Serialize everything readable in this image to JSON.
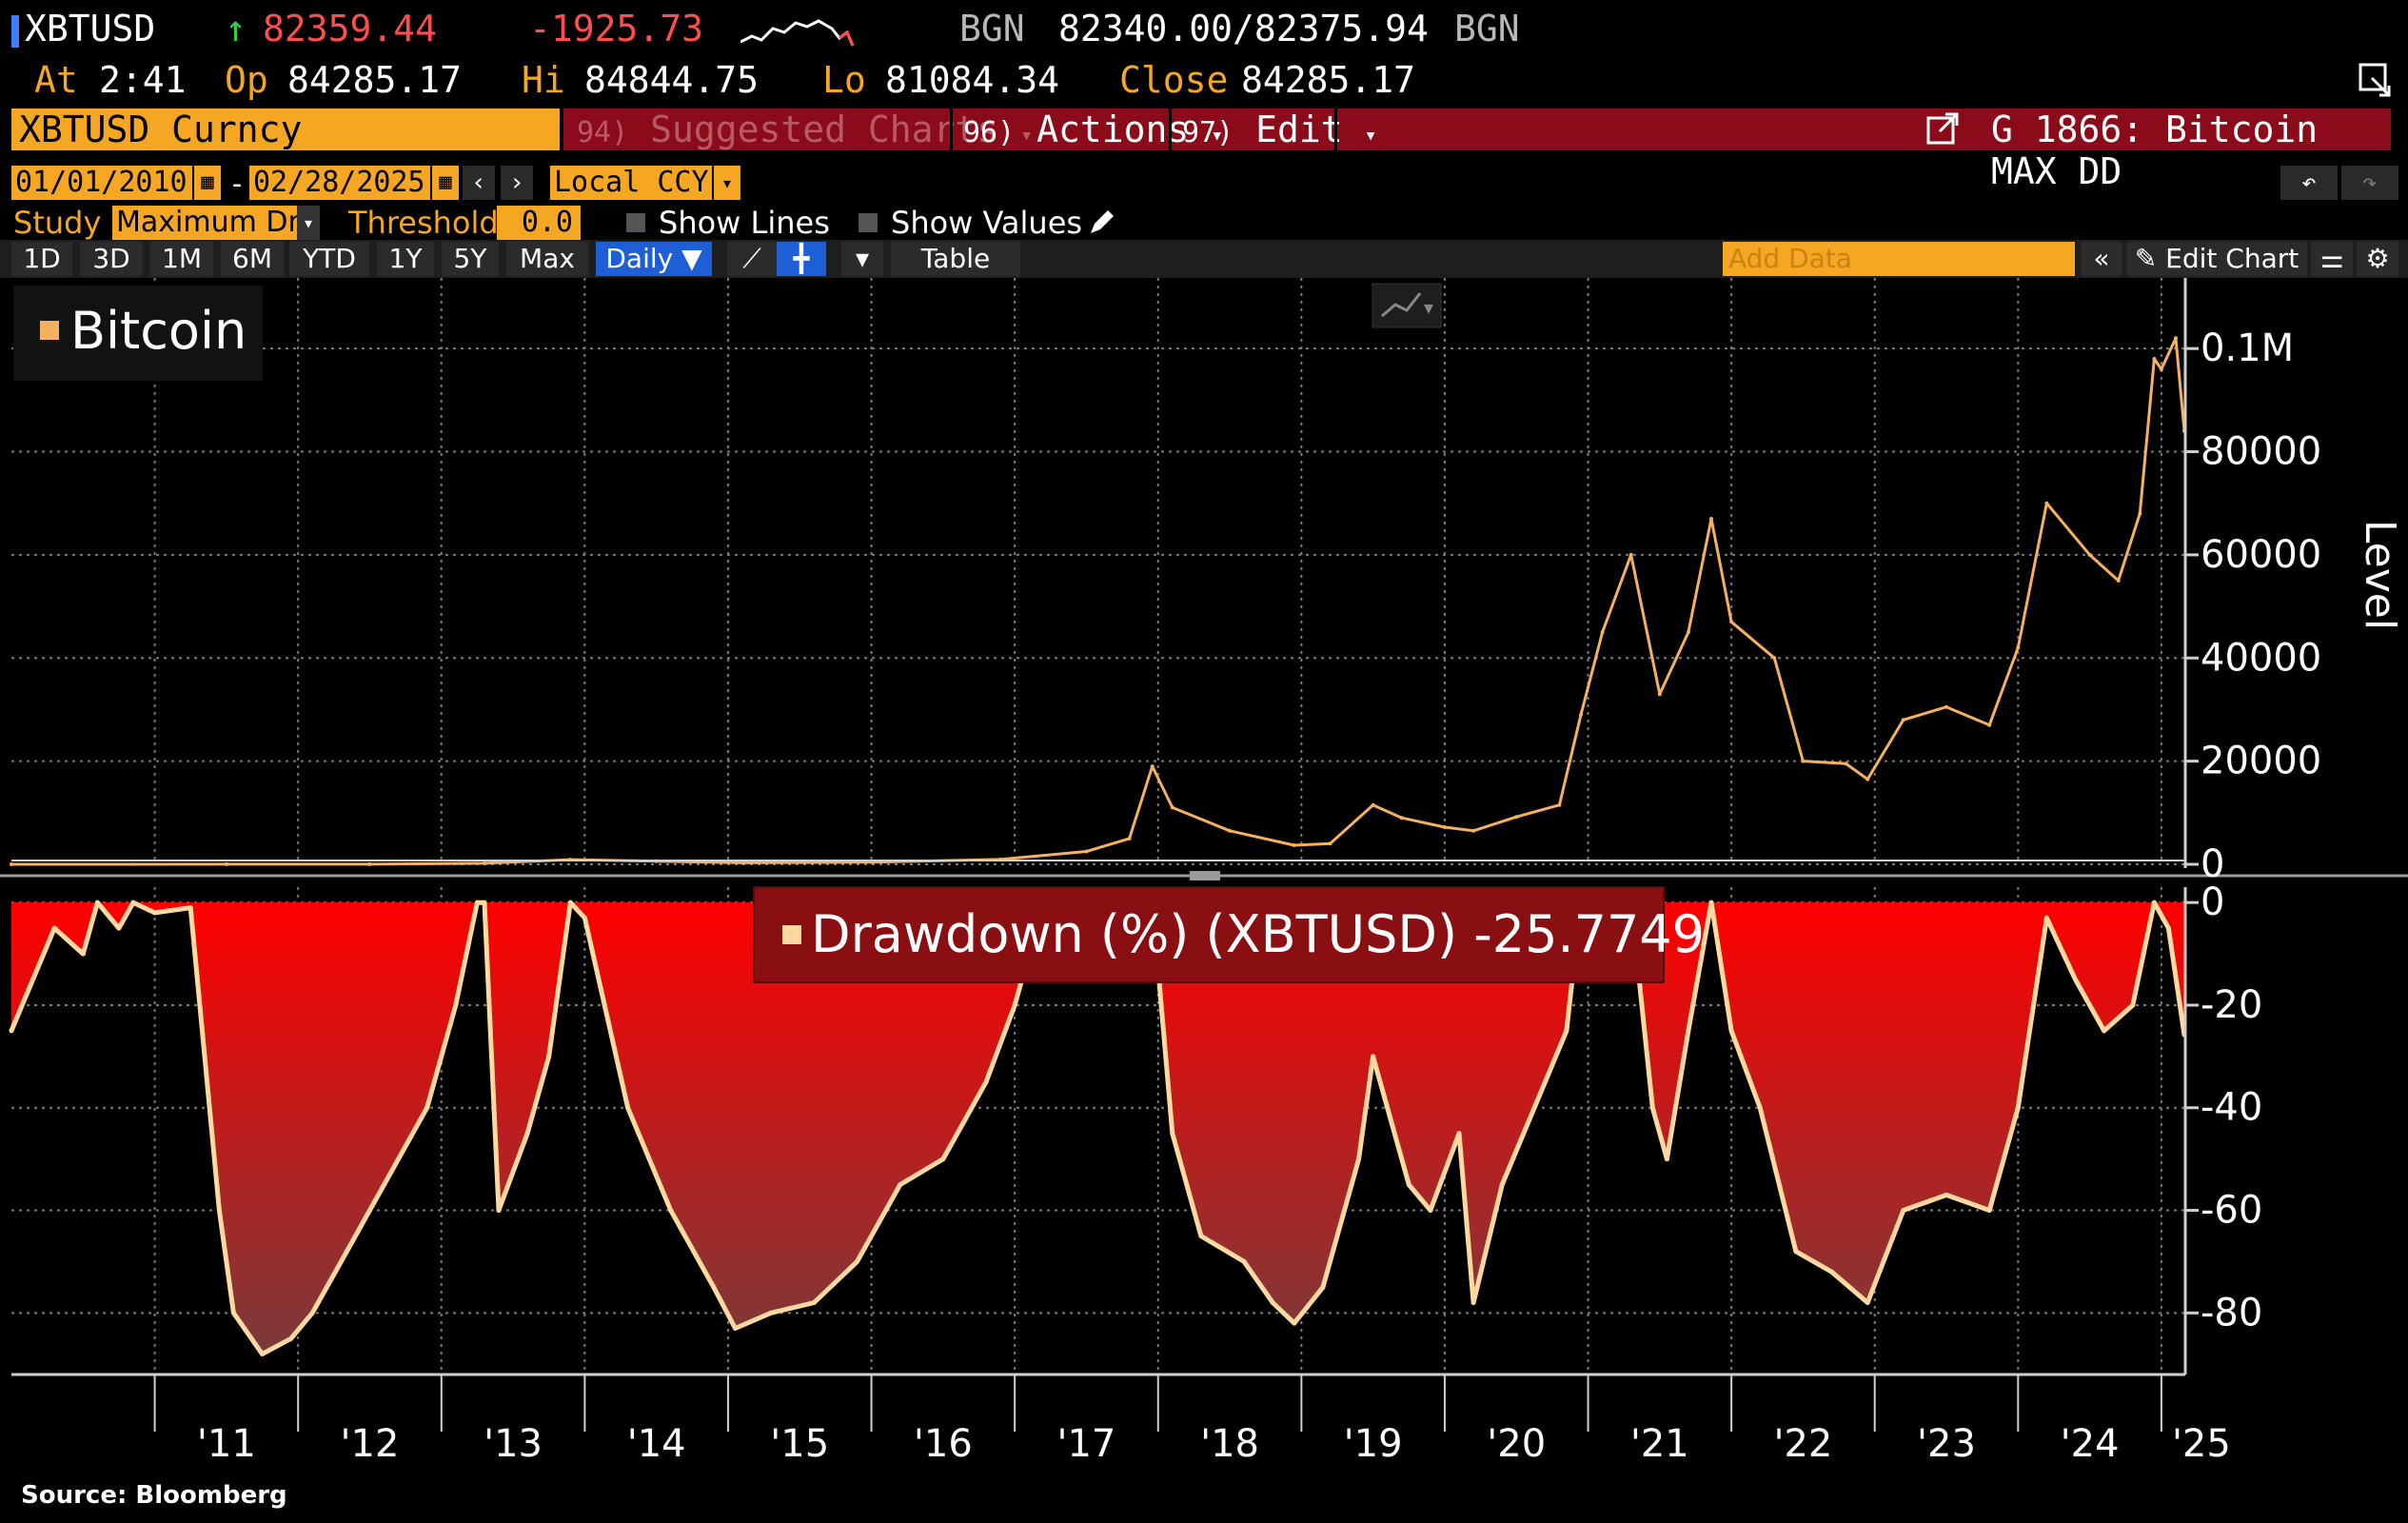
{
  "header": {
    "ticker": "XBTUSD",
    "arrow": "↑",
    "last_price": "82359.44",
    "change": "-1925.73",
    "source1": "BGN",
    "bid_ask": "82340.00/82375.94",
    "source2": "BGN",
    "at_label": "At",
    "at_time": "2:41",
    "op_label": "Op",
    "open": "84285.17",
    "hi_label": "Hi",
    "high": "84844.75",
    "lo_label": "Lo",
    "low": "81084.34",
    "close_label": "Close",
    "close": "84285.17"
  },
  "menu": {
    "security": "XBTUSD Curncy",
    "suggested_num": "94)",
    "suggested": "Suggested Charts",
    "actions_num": "96)",
    "actions": "Actions",
    "edit_num": "97)",
    "edit": "Edit",
    "chart_title": "G 1866: Bitcoin MAX DD"
  },
  "controls": {
    "start_date": "01/01/2010",
    "dash": "-",
    "end_date": "02/28/2025",
    "currency": "Local CCY",
    "study_label": "Study",
    "study_value": "Maximum Dr",
    "threshold_label": "Threshold",
    "threshold_value": "0.0",
    "show_lines": "Show Lines",
    "show_values": "Show Values"
  },
  "toolbar": {
    "periods": [
      "1D",
      "3D",
      "1M",
      "6M",
      "YTD",
      "1Y",
      "5Y",
      "Max"
    ],
    "frequency": "Daily ▼",
    "table": "Table",
    "add_data_placeholder": "Add Data",
    "edit_chart": "Edit Chart"
  },
  "icons": [
    "cursor-icon",
    "pencil-icon",
    "undo-icon",
    "redo-icon",
    "calendar-icon",
    "line-chart-icon",
    "candle-icon",
    "collapse-icon",
    "settings-icon",
    "share-icon"
  ],
  "colors": {
    "accent": "#f5a623",
    "menu_bar": "#8b0b1a",
    "price_line": "#f5b060",
    "drawdown_fill_top": "#ff0000",
    "drawdown_fill_bottom": "#7a3a3a",
    "drawdown_line": "#ffd9a0",
    "active_button": "#1e5fd6"
  },
  "footer": {
    "source": "Source: Bloomberg"
  },
  "chart_data": [
    {
      "type": "line",
      "legend": "Bitcoin",
      "ylabel": "Level",
      "ylim": [
        0,
        110000
      ],
      "yticks": [
        0,
        20000,
        40000,
        60000,
        80000,
        100000
      ],
      "ytick_labels": [
        "0",
        "20000",
        "40000",
        "60000",
        "80000",
        "0.1M"
      ],
      "series": [
        {
          "name": "Bitcoin",
          "x": [
            2010.0,
            2011.5,
            2012.5,
            2013.3,
            2013.9,
            2014.5,
            2015.1,
            2016.0,
            2016.9,
            2017.5,
            2017.8,
            2017.96,
            2018.1,
            2018.5,
            2018.95,
            2019.2,
            2019.5,
            2019.7,
            2020.0,
            2020.2,
            2020.5,
            2020.8,
            2020.95,
            2021.1,
            2021.3,
            2021.5,
            2021.7,
            2021.86,
            2022.0,
            2022.3,
            2022.5,
            2022.8,
            2022.95,
            2023.2,
            2023.5,
            2023.8,
            2024.0,
            2024.2,
            2024.5,
            2024.7,
            2024.85,
            2024.95,
            2025.0,
            2025.1,
            2025.16
          ],
          "y": [
            0,
            15,
            10,
            200,
            900,
            600,
            300,
            430,
            950,
            2500,
            5000,
            19000,
            11000,
            6500,
            3700,
            4000,
            11500,
            9000,
            7200,
            6500,
            9200,
            11500,
            29000,
            45000,
            60000,
            33000,
            45000,
            67000,
            47000,
            40000,
            20000,
            19500,
            16500,
            28000,
            30500,
            27000,
            42000,
            70000,
            60000,
            55000,
            68000,
            98000,
            96000,
            102000,
            84000
          ]
        }
      ]
    },
    {
      "type": "area",
      "legend": "Drawdown (%) (XBTUSD) -25.7749",
      "ylim": [
        -92,
        3
      ],
      "yticks": [
        0,
        -20,
        -40,
        -60,
        -80
      ],
      "ytick_labels": [
        "0",
        "-20",
        "-40",
        "-60",
        "-80"
      ],
      "series": [
        {
          "name": "Drawdown (%) (XBTUSD)",
          "x": [
            2010.0,
            2010.3,
            2010.5,
            2010.6,
            2010.75,
            2010.85,
            2011.0,
            2011.25,
            2011.45,
            2011.55,
            2011.75,
            2011.95,
            2012.1,
            2012.3,
            2012.6,
            2012.9,
            2013.1,
            2013.25,
            2013.3,
            2013.4,
            2013.6,
            2013.75,
            2013.9,
            2014.0,
            2014.3,
            2014.6,
            2014.9,
            2015.05,
            2015.3,
            2015.6,
            2015.9,
            2016.2,
            2016.5,
            2016.8,
            2017.0,
            2017.15,
            2017.3,
            2017.5,
            2017.7,
            2017.85,
            2017.96,
            2018.1,
            2018.3,
            2018.6,
            2018.8,
            2018.95,
            2019.15,
            2019.4,
            2019.5,
            2019.75,
            2019.9,
            2020.1,
            2020.2,
            2020.4,
            2020.7,
            2020.85,
            2020.95,
            2021.1,
            2021.3,
            2021.45,
            2021.55,
            2021.7,
            2021.86,
            2022.0,
            2022.2,
            2022.45,
            2022.7,
            2022.95,
            2023.2,
            2023.5,
            2023.8,
            2024.0,
            2024.2,
            2024.4,
            2024.6,
            2024.8,
            2024.95,
            2025.05,
            2025.16
          ],
          "y": [
            -25,
            -5,
            -10,
            0,
            -5,
            0,
            -2,
            -1,
            -60,
            -80,
            -88,
            -85,
            -80,
            -70,
            -55,
            -40,
            -20,
            0,
            0,
            -60,
            -45,
            -30,
            0,
            -3,
            -40,
            -60,
            -75,
            -83,
            -80,
            -78,
            -70,
            -55,
            -50,
            -35,
            -20,
            -5,
            -3,
            -8,
            -2,
            -2,
            0,
            -45,
            -65,
            -70,
            -78,
            -82,
            -75,
            -50,
            -30,
            -55,
            -60,
            -45,
            -78,
            -55,
            -35,
            -25,
            0,
            -5,
            0,
            -40,
            -50,
            -25,
            0,
            -25,
            -40,
            -68,
            -72,
            -78,
            -60,
            -57,
            -60,
            -40,
            -3,
            -15,
            -25,
            -20,
            0,
            -5,
            -25.77
          ]
        }
      ]
    }
  ],
  "x_axis": {
    "labels": [
      "'11",
      "'12",
      "'13",
      "'14",
      "'15",
      "'16",
      "'17",
      "'18",
      "'19",
      "'20",
      "'21",
      "'22",
      "'23",
      "'24",
      "'25"
    ],
    "years": [
      2011,
      2012,
      2013,
      2014,
      2015,
      2016,
      2017,
      2018,
      2019,
      2020,
      2021,
      2022,
      2023,
      2024,
      2025
    ]
  }
}
